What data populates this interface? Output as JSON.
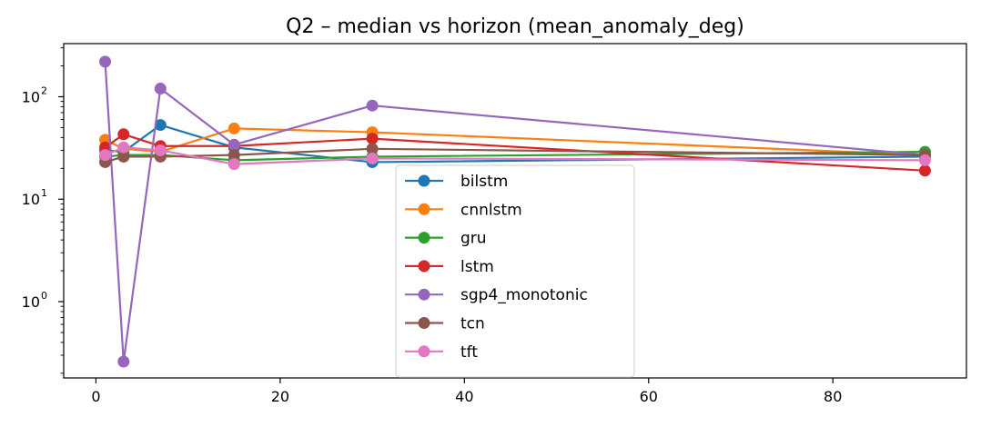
{
  "chart_data": {
    "type": "line",
    "title": "Q2 – median vs horizon (mean_anomaly_deg)",
    "xlabel": "",
    "ylabel": "",
    "y_scale": "log",
    "x_ticks": [
      0,
      20,
      40,
      60,
      80
    ],
    "y_ticks": [
      1,
      10,
      100
    ],
    "y_tick_labels": [
      {
        "base": "10",
        "exp": "0"
      },
      {
        "base": "10",
        "exp": "1"
      },
      {
        "base": "10",
        "exp": "2"
      }
    ],
    "xlim": [
      -3.5,
      94.5
    ],
    "ylim": [
      0.18,
      330
    ],
    "grid": false,
    "legend_position": "lower center",
    "x": [
      1,
      3,
      7,
      15,
      30,
      90
    ],
    "series": [
      {
        "name": "bilstm",
        "color": "#1f77b4",
        "values": [
          30,
          29,
          53,
          32,
          23,
          26
        ]
      },
      {
        "name": "cnnlstm",
        "color": "#ff7f0e",
        "values": [
          38,
          31,
          29,
          49,
          45,
          27
        ]
      },
      {
        "name": "gru",
        "color": "#2ca02c",
        "values": [
          26,
          27,
          27,
          24,
          26,
          29
        ]
      },
      {
        "name": "lstm",
        "color": "#d62728",
        "values": [
          32,
          43,
          33,
          33,
          39,
          19
        ]
      },
      {
        "name": "sgp4_monotonic",
        "color": "#9467bd",
        "values": [
          220,
          0.26,
          120,
          34,
          82,
          27
        ]
      },
      {
        "name": "tcn",
        "color": "#8c564b",
        "values": [
          23,
          26,
          26,
          27,
          31,
          27
        ]
      },
      {
        "name": "tft",
        "color": "#e377c2",
        "values": [
          27,
          32,
          30,
          22,
          25,
          24
        ]
      }
    ]
  }
}
